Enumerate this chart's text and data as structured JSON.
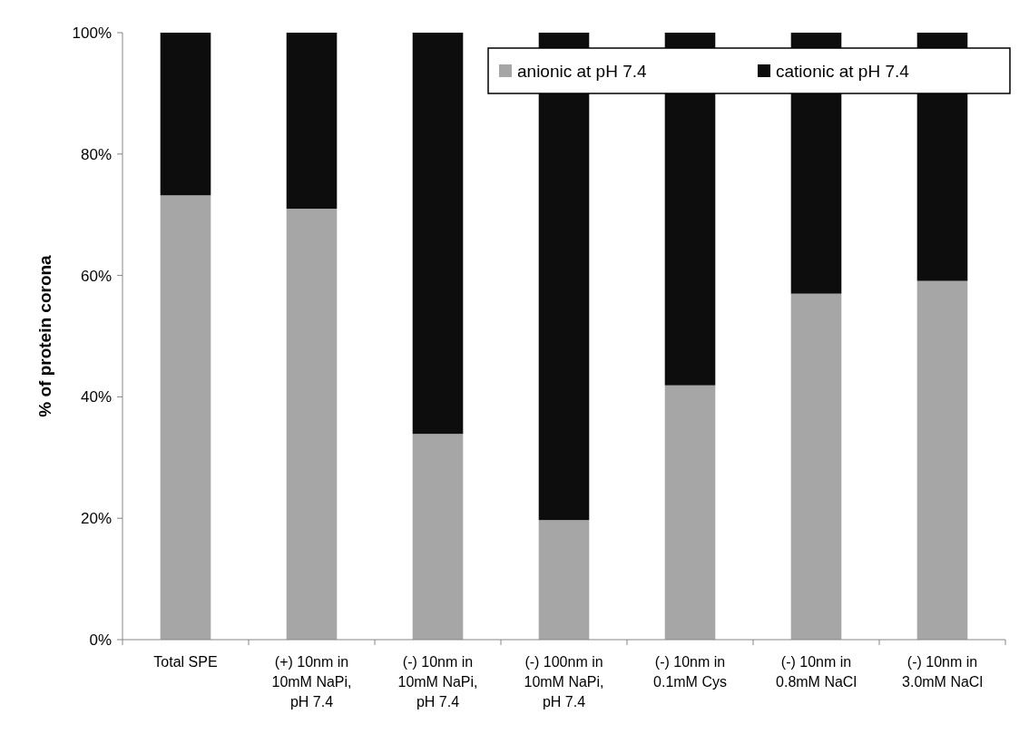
{
  "chart_data": {
    "type": "bar",
    "stacked": true,
    "ylabel": "% of protein corona",
    "categories": [
      "Total SPE",
      "(+) 10nm in 10mM NaPi, pH 7.4",
      "(-) 10nm in 10mM NaPi, pH 7.4",
      "(-) 100nm in 10mM NaPi, pH 7.4",
      "(-) 10nm in 0.1mM Cys",
      "(-) 10nm in 0.8mM NaCl",
      "(-) 10nm in 3.0mM NaCl"
    ],
    "series": [
      {
        "name": "anionic at pH 7.4",
        "color": "#a6a6a6",
        "values": [
          73.2,
          71.0,
          33.9,
          19.7,
          41.9,
          57.0,
          59.1
        ]
      },
      {
        "name": "cationic at pH 7.4",
        "color": "#0d0d0d",
        "values": [
          26.8,
          29.0,
          66.1,
          80.3,
          58.1,
          43.0,
          40.9
        ]
      }
    ],
    "ylim": [
      0,
      100
    ],
    "yticks": [
      {
        "value": 0,
        "label": "0%"
      },
      {
        "value": 20,
        "label": "20%"
      },
      {
        "value": 40,
        "label": "40%"
      },
      {
        "value": 60,
        "label": "60%"
      },
      {
        "value": 80,
        "label": "80%"
      },
      {
        "value": 100,
        "label": "100%"
      }
    ],
    "grid": false,
    "legend": "top right"
  }
}
